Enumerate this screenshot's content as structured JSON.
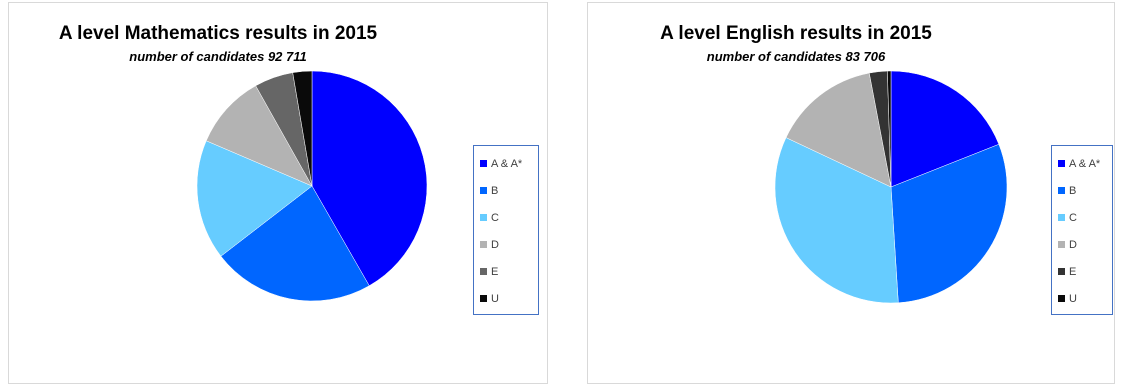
{
  "chart_data": [
    {
      "type": "pie",
      "title": "A level Mathematics results in 2015",
      "subtitle": "number of candidates 92 711",
      "legend_position": "right",
      "slices": [
        {
          "label": "A & A*",
          "value": 42,
          "color": "#0000ff"
        },
        {
          "label": "B",
          "value": 23,
          "color": "#0066ff"
        },
        {
          "label": "C",
          "value": 17,
          "color": "#66ccff"
        },
        {
          "label": "D",
          "value": 10.5,
          "color": "#b3b3b3"
        },
        {
          "label": "E",
          "value": 5.5,
          "color": "#666666"
        },
        {
          "label": "U",
          "value": 2.7,
          "color": "#0a0a0a"
        }
      ]
    },
    {
      "type": "pie",
      "title": "A level English results in 2015",
      "subtitle": "number of candidates 83 706",
      "legend_position": "right",
      "slices": [
        {
          "label": "A & A*",
          "value": 19,
          "color": "#0000ff"
        },
        {
          "label": "B",
          "value": 30,
          "color": "#0066ff"
        },
        {
          "label": "C",
          "value": 33,
          "color": "#66ccff"
        },
        {
          "label": "D",
          "value": 15,
          "color": "#b3b3b3"
        },
        {
          "label": "E",
          "value": 2.5,
          "color": "#333333"
        },
        {
          "label": "U",
          "value": 0.5,
          "color": "#0a0a0a"
        }
      ]
    }
  ]
}
